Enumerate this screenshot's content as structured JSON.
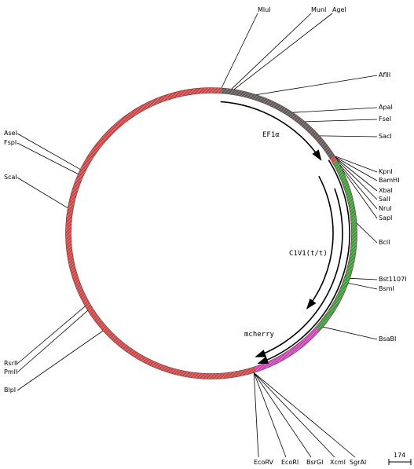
{
  "plasmid_map": {
    "colors": {
      "backbone": "#c84646",
      "ef1a": "#5a5a5a",
      "c1v1": "#3c9a3c",
      "mcherry": "#cc44bb",
      "kpni_mark": "#c84646",
      "line": "#000000"
    },
    "features": [
      {
        "name": "EF1α",
        "segment_color": "ef1a"
      },
      {
        "name": "C1V1(t/t)",
        "segment_color": "c1v1"
      },
      {
        "name": "mcherry",
        "segment_color": "mcherry"
      }
    ],
    "sites": {
      "top": [
        "MluI",
        "MunI",
        "AgeI"
      ],
      "right": [
        "AflII",
        "ApaI",
        "FseI",
        "SacI",
        "KpnI",
        "BamHI",
        "XbaI",
        "SalI",
        "NruI",
        "SapI",
        "BclI",
        "Bst1107I",
        "BsmI",
        "BsaBI"
      ],
      "left": [
        "AseI",
        "FspI",
        "ScaI",
        "RsrII",
        "PmlI",
        "BlpI"
      ],
      "bottom": [
        "EcoRV",
        "EcoRI",
        "BsrGI",
        "XcmI",
        "SgrAI"
      ]
    },
    "scale_bar": {
      "label": "174"
    }
  }
}
